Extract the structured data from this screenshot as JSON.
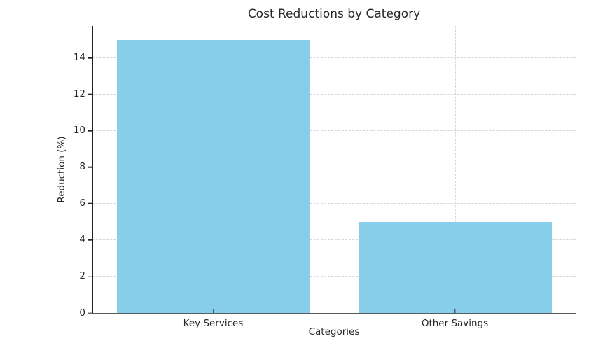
{
  "chart_data": {
    "type": "bar",
    "title": "Cost Reductions by Category",
    "xlabel": "Categories",
    "ylabel": "Reduction (%)",
    "categories": [
      "Key Services",
      "Other Savings"
    ],
    "values": [
      15,
      5
    ],
    "yticks": [
      0,
      2,
      4,
      6,
      8,
      10,
      12,
      14
    ],
    "ylim": [
      0,
      15.75
    ],
    "grid": true,
    "grid_style": "dashed",
    "legend": false,
    "bar_width_frac": 0.4,
    "colors": {
      "bar": "#87CEEB",
      "grid": "#d6d6d6",
      "spine": "#262626",
      "text": "#262626",
      "background": "#ffffff"
    }
  }
}
